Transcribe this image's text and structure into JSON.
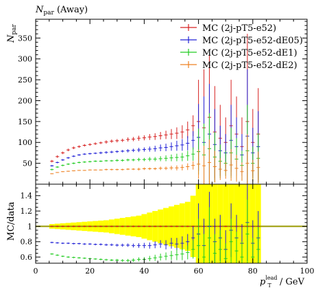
{
  "chart_data": [
    {
      "type": "scatter",
      "title": "N_par (Away)",
      "title_main": "N",
      "title_sub": "par",
      "title_tail": " (Away)",
      "ylabel_main": "N",
      "ylabel_sub": "par",
      "xlim": [
        0,
        100
      ],
      "ylim": [
        0,
        395
      ],
      "yticks": [
        50,
        100,
        150,
        200,
        250,
        300,
        350
      ],
      "legend_position": "top-right",
      "series": [
        {
          "name": "MC (2j-pT5-e52)",
          "color": "#d62020",
          "x": [
            6,
            8,
            10,
            12,
            14,
            16,
            18,
            20,
            22,
            24,
            26,
            28,
            30,
            32,
            34,
            36,
            38,
            40,
            42,
            44,
            46,
            48,
            50,
            52,
            54,
            56,
            58,
            60,
            62,
            64,
            66,
            68,
            70,
            72,
            74,
            76,
            78,
            80,
            82
          ],
          "y": [
            55,
            66,
            75,
            82,
            87,
            90,
            93,
            95,
            97,
            99,
            101,
            103,
            104,
            105,
            107,
            108,
            110,
            111,
            113,
            114,
            116,
            118,
            120,
            122,
            125,
            130,
            140,
            150,
            135,
            160,
            125,
            110,
            100,
            140,
            120,
            90,
            150,
            100,
            120
          ],
          "err": [
            3,
            3,
            3,
            3,
            3,
            3,
            3,
            3,
            3,
            3,
            4,
            4,
            4,
            4,
            5,
            5,
            6,
            6,
            7,
            8,
            9,
            10,
            12,
            14,
            16,
            20,
            25,
            100,
            140,
            150,
            110,
            80,
            60,
            110,
            90,
            70,
            210,
            80,
            110
          ]
        },
        {
          "name": "MC (2j-pT5-e52-dE05)",
          "color": "#2020d6",
          "x": [
            6,
            8,
            10,
            12,
            14,
            16,
            18,
            20,
            22,
            24,
            26,
            28,
            30,
            32,
            34,
            36,
            38,
            40,
            42,
            44,
            46,
            48,
            50,
            52,
            54,
            56,
            58,
            60,
            62,
            64,
            66,
            68,
            70,
            72,
            74,
            76,
            78,
            80,
            82
          ],
          "y": [
            44,
            52,
            58,
            63,
            67,
            70,
            72,
            73,
            74,
            75,
            76,
            77,
            78,
            79,
            80,
            81,
            82,
            83,
            84,
            85,
            87,
            88,
            90,
            92,
            94,
            98,
            105,
            112,
            100,
            120,
            95,
            80,
            75,
            105,
            90,
            70,
            115,
            75,
            90
          ],
          "err": [
            2,
            2,
            2,
            2,
            2,
            2,
            2,
            2,
            2,
            3,
            3,
            3,
            3,
            3,
            4,
            4,
            5,
            5,
            6,
            7,
            8,
            9,
            10,
            12,
            14,
            17,
            22,
            80,
            110,
            120,
            85,
            60,
            45,
            85,
            70,
            50,
            160,
            60,
            85
          ]
        },
        {
          "name": "MC (2j-pT5-e52-dE1)",
          "color": "#22cc22",
          "x": [
            6,
            8,
            10,
            12,
            14,
            16,
            18,
            20,
            22,
            24,
            26,
            28,
            30,
            32,
            34,
            36,
            38,
            40,
            42,
            44,
            46,
            48,
            50,
            52,
            54,
            56,
            58,
            60,
            62,
            64,
            66,
            68,
            70,
            72,
            74,
            76,
            78,
            80,
            82
          ],
          "y": [
            35,
            41,
            45,
            48,
            50,
            52,
            53,
            54,
            55,
            55,
            56,
            56,
            57,
            57,
            58,
            58,
            59,
            59,
            60,
            60,
            61,
            62,
            63,
            64,
            65,
            68,
            72,
            78,
            70,
            85,
            65,
            55,
            50,
            75,
            60,
            45,
            80,
            50,
            62
          ],
          "err": [
            2,
            2,
            2,
            2,
            2,
            2,
            2,
            2,
            2,
            2,
            2,
            2,
            3,
            3,
            3,
            3,
            4,
            4,
            5,
            5,
            6,
            7,
            8,
            9,
            10,
            12,
            16,
            55,
            75,
            85,
            60,
            40,
            30,
            60,
            50,
            35,
            110,
            40,
            60
          ]
        },
        {
          "name": "MC (2j-pT5-e52-dE2)",
          "color": "#ee8020",
          "x": [
            6,
            8,
            10,
            12,
            14,
            16,
            18,
            20,
            22,
            24,
            26,
            28,
            30,
            32,
            34,
            36,
            38,
            40,
            42,
            44,
            46,
            48,
            50,
            52,
            54,
            56,
            58,
            60,
            62,
            64,
            66,
            68,
            70,
            72,
            74,
            76,
            78,
            80,
            82
          ],
          "y": [
            25,
            28,
            30,
            31,
            32,
            33,
            33,
            34,
            34,
            34,
            35,
            35,
            35,
            35,
            36,
            36,
            36,
            37,
            37,
            37,
            38,
            38,
            39,
            39,
            40,
            42,
            45,
            48,
            44,
            52,
            42,
            36,
            33,
            46,
            38,
            30,
            50,
            32,
            40
          ],
          "err": [
            1,
            1,
            1,
            1,
            1,
            1,
            1,
            1,
            1,
            1,
            2,
            2,
            2,
            2,
            2,
            2,
            3,
            3,
            3,
            3,
            4,
            4,
            5,
            6,
            7,
            8,
            10,
            35,
            48,
            55,
            38,
            26,
            20,
            38,
            32,
            22,
            70,
            26,
            38
          ]
        }
      ]
    },
    {
      "type": "scatter",
      "ylabel": "MC/data",
      "xlabel_main": "p",
      "xlabel_sub": "T",
      "xlabel_sup": "lead",
      "xlabel_tail": " / GeV",
      "xlim": [
        0,
        100
      ],
      "ylim": [
        0.52,
        1.55
      ],
      "yticks": [
        0.6,
        0.8,
        1,
        1.2,
        1.4
      ],
      "ytick_labels": [
        "0.6",
        "0.8",
        "1",
        "1.2",
        "1.4"
      ],
      "xticks": [
        0,
        20,
        40,
        60,
        80,
        100
      ],
      "xtick_labels": [
        "0",
        "20",
        "40",
        "60",
        "80",
        "100"
      ],
      "reference_line": 1,
      "reference_color": "#999900",
      "data_band": {
        "color": "#ffff00",
        "x": [
          6,
          8,
          10,
          12,
          14,
          16,
          18,
          20,
          22,
          24,
          26,
          28,
          30,
          32,
          34,
          36,
          38,
          40,
          42,
          44,
          46,
          48,
          50,
          52,
          54,
          56,
          58,
          60,
          62,
          64,
          66,
          68,
          70,
          72,
          74,
          76,
          78,
          80,
          82
        ],
        "half_width": [
          0.03,
          0.035,
          0.04,
          0.045,
          0.05,
          0.055,
          0.06,
          0.065,
          0.07,
          0.075,
          0.08,
          0.09,
          0.1,
          0.11,
          0.12,
          0.13,
          0.14,
          0.16,
          0.18,
          0.2,
          0.22,
          0.24,
          0.26,
          0.28,
          0.3,
          0.32,
          0.4,
          0.6,
          0.6,
          0.6,
          0.6,
          0.6,
          0.6,
          0.6,
          0.6,
          0.6,
          0.6,
          0.6,
          0.6
        ]
      },
      "series": [
        {
          "name": "MC (2j-pT5-e52)",
          "color": "#d62020",
          "x": [
            6,
            8,
            10,
            12,
            14,
            16,
            18,
            20,
            22,
            24,
            26,
            28,
            30,
            32,
            34,
            36,
            38,
            40,
            42,
            44,
            46,
            48,
            50,
            52,
            54,
            56,
            58,
            60,
            62,
            64,
            66,
            68,
            70,
            72,
            74,
            76,
            78,
            80,
            82
          ],
          "y": [
            1.0,
            1.0,
            1.0,
            1.0,
            1.0,
            1.0,
            1.0,
            1.0,
            1.0,
            1.0,
            1.0,
            1.0,
            1.0,
            1.0,
            1.0,
            1.0,
            1.0,
            1.0,
            1.0,
            1.0,
            1.0,
            1.0,
            1.0,
            1.0,
            1.0,
            1.0,
            1.0,
            1.0,
            1.0,
            1.0,
            1.0,
            1.0,
            1.0,
            1.0,
            1.0,
            1.0,
            1.0,
            1.0,
            1.0
          ],
          "err": [
            0.01,
            0.01,
            0.01,
            0.01,
            0.01,
            0.01,
            0.01,
            0.01,
            0.01,
            0.01,
            0.01,
            0.01,
            0.01,
            0.01,
            0.01,
            0.01,
            0.01,
            0.01,
            0.01,
            0.01,
            0.01,
            0.01,
            0.01,
            0.01,
            0.01,
            0.01,
            0.01,
            0.01,
            0.01,
            0.01,
            0.01,
            0.01,
            0.01,
            0.01,
            0.01,
            0.01,
            0.01,
            0.01,
            0.01
          ]
        },
        {
          "name": "MC (2j-pT5-e52-dE05)",
          "color": "#2020d6",
          "x": [
            6,
            8,
            10,
            12,
            14,
            16,
            18,
            20,
            22,
            24,
            26,
            28,
            30,
            32,
            34,
            36,
            38,
            40,
            42,
            44,
            46,
            48,
            50,
            52,
            54,
            56,
            58,
            60,
            62,
            64,
            66,
            68,
            70,
            72,
            74,
            76,
            78,
            80,
            82
          ],
          "y": [
            0.79,
            0.785,
            0.78,
            0.78,
            0.775,
            0.775,
            0.77,
            0.77,
            0.765,
            0.765,
            0.76,
            0.76,
            0.755,
            0.755,
            0.755,
            0.75,
            0.75,
            0.75,
            0.75,
            0.76,
            0.77,
            0.76,
            0.78,
            0.77,
            0.78,
            0.8,
            0.85,
            0.9,
            0.75,
            1.0,
            0.8,
            0.85,
            0.7,
            0.95,
            0.85,
            0.78,
            1.05,
            0.78,
            0.85
          ],
          "err": [
            0.01,
            0.01,
            0.01,
            0.01,
            0.01,
            0.01,
            0.012,
            0.012,
            0.012,
            0.014,
            0.014,
            0.016,
            0.018,
            0.02,
            0.022,
            0.025,
            0.03,
            0.035,
            0.04,
            0.045,
            0.05,
            0.06,
            0.07,
            0.08,
            0.09,
            0.1,
            0.15,
            0.4,
            0.35,
            0.45,
            0.3,
            0.3,
            0.25,
            0.35,
            0.3,
            0.25,
            0.5,
            0.3,
            0.35
          ]
        },
        {
          "name": "MC (2j-pT5-e52-dE1)",
          "color": "#22cc22",
          "x": [
            6,
            8,
            10,
            12,
            14,
            16,
            18,
            20,
            22,
            24,
            26,
            28,
            30,
            32,
            34,
            36,
            38,
            40,
            42,
            44,
            46,
            48,
            50,
            52,
            54,
            56,
            58,
            60,
            62,
            64,
            66,
            68,
            70,
            72,
            74,
            76,
            78,
            80,
            82
          ],
          "y": [
            0.64,
            0.625,
            0.61,
            0.6,
            0.595,
            0.59,
            0.585,
            0.58,
            0.575,
            0.57,
            0.565,
            0.56,
            0.56,
            0.555,
            0.555,
            0.56,
            0.57,
            0.57,
            0.58,
            0.59,
            0.6,
            0.61,
            0.62,
            0.63,
            0.64,
            0.66,
            0.7,
            0.75,
            0.6,
            0.85,
            0.65,
            0.7,
            0.58,
            0.8,
            0.68,
            0.6,
            0.9,
            0.6,
            0.7
          ],
          "err": [
            0.01,
            0.01,
            0.01,
            0.01,
            0.01,
            0.01,
            0.01,
            0.01,
            0.01,
            0.012,
            0.012,
            0.014,
            0.016,
            0.018,
            0.02,
            0.022,
            0.026,
            0.03,
            0.035,
            0.04,
            0.045,
            0.05,
            0.06,
            0.07,
            0.08,
            0.09,
            0.12,
            0.35,
            0.3,
            0.4,
            0.25,
            0.25,
            0.2,
            0.3,
            0.25,
            0.2,
            0.45,
            0.25,
            0.3
          ]
        }
      ]
    }
  ]
}
